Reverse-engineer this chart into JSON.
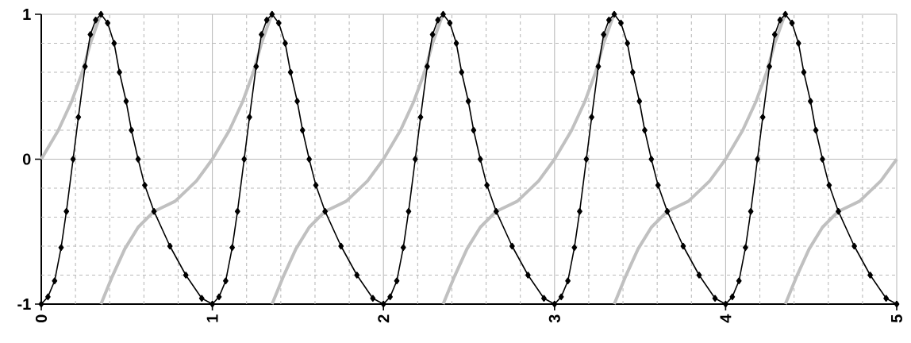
{
  "chart_data": {
    "type": "line",
    "xlim": [
      0,
      5
    ],
    "ylim": [
      -1,
      1
    ],
    "xticks": [
      0,
      {
        "value": 0.2,
        "label": null
      },
      {
        "value": 0.4,
        "label": null
      },
      {
        "value": 0.6,
        "label": null
      },
      {
        "value": 0.8,
        "label": null
      },
      1,
      {
        "value": 1.2,
        "label": null
      },
      {
        "value": 1.4,
        "label": null
      },
      {
        "value": 1.6,
        "label": null
      },
      {
        "value": 1.8,
        "label": null
      },
      2,
      {
        "value": 2.2,
        "label": null
      },
      {
        "value": 2.4,
        "label": null
      },
      {
        "value": 2.6,
        "label": null
      },
      {
        "value": 2.8,
        "label": null
      },
      3,
      {
        "value": 3.2,
        "label": null
      },
      {
        "value": 3.4,
        "label": null
      },
      {
        "value": 3.6,
        "label": null
      },
      {
        "value": 3.8,
        "label": null
      },
      4,
      {
        "value": 4.2,
        "label": null
      },
      {
        "value": 4.4,
        "label": null
      },
      {
        "value": 4.6,
        "label": null
      },
      {
        "value": 4.8,
        "label": null
      },
      5
    ],
    "yticks": [
      -1,
      {
        "value": -0.8,
        "label": null
      },
      {
        "value": -0.6,
        "label": null
      },
      {
        "value": -0.4,
        "label": null
      },
      {
        "value": -0.2,
        "label": null
      },
      0,
      {
        "value": 0.2,
        "label": null
      },
      {
        "value": 0.4,
        "label": null
      },
      {
        "value": 0.6,
        "label": null
      },
      {
        "value": 0.8,
        "label": null
      },
      1
    ],
    "grid": true,
    "series": [
      {
        "color": "#c0c0c0",
        "marker": "none",
        "line_style": "solid",
        "x": [
          0,
          0.1,
          0.178,
          0.24,
          0.287,
          0.341,
          0.345,
          0.349,
          0.411,
          0.488,
          0.566,
          0.659,
          0.783,
          0.907,
          1.0,
          1.1,
          1.178,
          1.24,
          1.287,
          1.341,
          1.345,
          1.349,
          1.411,
          1.488,
          1.566,
          1.659,
          1.783,
          1.907,
          2.0,
          2.1,
          2.178,
          2.24,
          2.287,
          2.341,
          2.345,
          2.349,
          2.411,
          2.488,
          2.566,
          2.659,
          2.783,
          2.907,
          3.0,
          3.1,
          3.178,
          3.24,
          3.287,
          3.341,
          3.345,
          3.349,
          3.411,
          3.488,
          3.566,
          3.659,
          3.783,
          3.907,
          4.0,
          4.1,
          4.178,
          4.24,
          4.287,
          4.341,
          4.345,
          4.349,
          4.411,
          4.488,
          4.566,
          4.659,
          4.783,
          4.907,
          5.0
        ],
        "values": [
          0,
          0.2,
          0.4,
          0.6,
          0.8,
          0.98,
          null,
          -1,
          -0.82,
          -0.62,
          -0.47,
          -0.36,
          -0.29,
          -0.15,
          0,
          0.2,
          0.4,
          0.6,
          0.8,
          0.98,
          null,
          -1,
          -0.82,
          -0.62,
          -0.47,
          -0.36,
          -0.29,
          -0.15,
          0,
          0.2,
          0.4,
          0.6,
          0.8,
          0.98,
          null,
          -1,
          -0.82,
          -0.62,
          -0.47,
          -0.36,
          -0.29,
          -0.15,
          0,
          0.2,
          0.4,
          0.6,
          0.8,
          0.98,
          null,
          -1,
          -0.82,
          -0.62,
          -0.47,
          -0.36,
          -0.29,
          -0.15,
          0,
          0.2,
          0.4,
          0.6,
          0.8,
          0.98,
          null,
          -1,
          -0.82,
          -0.62,
          -0.47,
          -0.36,
          -0.29,
          -0.15,
          0
        ]
      },
      {
        "color": "#000000",
        "marker": "diamond",
        "line_style": "solid",
        "x": [
          0,
          0.039,
          0.078,
          0.116,
          0.147,
          0.186,
          0.217,
          0.256,
          0.287,
          0.318,
          0.349,
          0.388,
          0.426,
          0.457,
          0.496,
          0.527,
          0.566,
          0.605,
          0.659,
          0.752,
          0.845,
          0.938,
          1.0,
          1.039,
          1.078,
          1.116,
          1.147,
          1.186,
          1.217,
          1.256,
          1.287,
          1.318,
          1.349,
          1.388,
          1.426,
          1.457,
          1.496,
          1.527,
          1.566,
          1.605,
          1.659,
          1.752,
          1.845,
          1.938,
          2.0,
          2.039,
          2.078,
          2.116,
          2.147,
          2.186,
          2.217,
          2.256,
          2.287,
          2.318,
          2.349,
          2.388,
          2.426,
          2.457,
          2.496,
          2.527,
          2.566,
          2.605,
          2.659,
          2.752,
          2.845,
          2.938,
          3.0,
          3.039,
          3.078,
          3.116,
          3.147,
          3.186,
          3.217,
          3.256,
          3.287,
          3.318,
          3.349,
          3.388,
          3.426,
          3.457,
          3.496,
          3.527,
          3.566,
          3.605,
          3.659,
          3.752,
          3.845,
          3.938,
          4.0,
          4.039,
          4.078,
          4.116,
          4.147,
          4.186,
          4.217,
          4.256,
          4.287,
          4.318,
          4.349,
          4.388,
          4.426,
          4.457,
          4.496,
          4.527,
          4.566,
          4.605,
          4.659,
          4.752,
          4.845,
          4.938,
          5.0
        ],
        "values": [
          -1,
          -0.95,
          -0.84,
          -0.61,
          -0.36,
          0,
          0.29,
          0.64,
          0.86,
          0.96,
          1,
          0.94,
          0.8,
          0.6,
          0.4,
          0.2,
          0,
          -0.18,
          -0.36,
          -0.6,
          -0.8,
          -0.96,
          -1,
          -0.95,
          -0.84,
          -0.61,
          -0.36,
          0,
          0.29,
          0.64,
          0.86,
          0.96,
          1,
          0.94,
          0.8,
          0.6,
          0.4,
          0.2,
          0,
          -0.18,
          -0.36,
          -0.6,
          -0.8,
          -0.96,
          -1,
          -0.95,
          -0.84,
          -0.61,
          -0.36,
          0,
          0.29,
          0.64,
          0.86,
          0.96,
          1,
          0.94,
          0.8,
          0.6,
          0.4,
          0.2,
          0,
          -0.18,
          -0.36,
          -0.6,
          -0.8,
          -0.96,
          -1,
          -0.95,
          -0.84,
          -0.61,
          -0.36,
          0,
          0.29,
          0.64,
          0.86,
          0.96,
          1,
          0.94,
          0.8,
          0.6,
          0.4,
          0.2,
          0,
          -0.18,
          -0.36,
          -0.6,
          -0.8,
          -0.96,
          -1,
          -0.95,
          -0.84,
          -0.61,
          -0.36,
          0,
          0.29,
          0.64,
          0.86,
          0.96,
          1,
          0.94,
          0.8,
          0.6,
          0.4,
          0.2,
          0,
          -0.18,
          -0.36,
          -0.6,
          -0.8,
          -0.96,
          -1
        ]
      }
    ]
  }
}
